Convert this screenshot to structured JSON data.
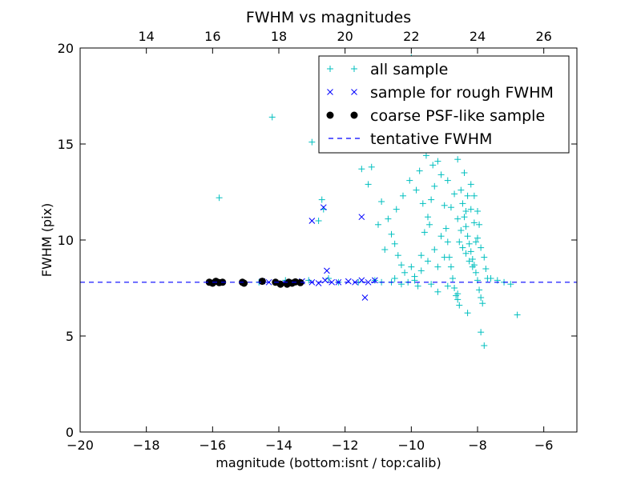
{
  "chart_data": {
    "type": "scatter",
    "title": "FWHM vs magnitudes",
    "xlabel": "magnitude (bottom:isnt / top:calib)",
    "ylabel": "FWHM (pix)",
    "xlim": [
      -20,
      -5
    ],
    "ylim": [
      0,
      20
    ],
    "x_ticks": [
      "−20",
      "−18",
      "−16",
      "−14",
      "−12",
      "−10",
      "−8",
      "−6"
    ],
    "x_tick_values": [
      -20,
      -18,
      -16,
      -14,
      -12,
      -10,
      -8,
      -6
    ],
    "y_ticks": [
      "0",
      "5",
      "10",
      "15",
      "20"
    ],
    "y_tick_values": [
      0,
      5,
      10,
      15,
      20
    ],
    "top_axis": {
      "ticks": [
        "14",
        "16",
        "18",
        "20",
        "22",
        "24",
        "26"
      ],
      "tick_values": [
        14,
        16,
        18,
        20,
        22,
        24,
        26
      ],
      "offset": 32
    },
    "grid": false,
    "legend_position": "top-right",
    "series": [
      {
        "name": "all sample",
        "marker": "plus",
        "color": "#00bfbf",
        "points": [
          [
            -15.8,
            12.2
          ],
          [
            -14.2,
            16.4
          ],
          [
            -13.0,
            15.1
          ],
          [
            -12.7,
            12.1
          ],
          [
            -12.65,
            11.6
          ],
          [
            -11.5,
            13.7
          ],
          [
            -11.2,
            13.8
          ],
          [
            -11.3,
            12.9
          ],
          [
            -10.9,
            12.0
          ],
          [
            -10.7,
            11.1
          ],
          [
            -10.6,
            10.3
          ],
          [
            -10.5,
            9.8
          ],
          [
            -10.4,
            9.2
          ],
          [
            -10.3,
            8.7
          ],
          [
            -10.2,
            8.3
          ],
          [
            -10.5,
            8.0
          ],
          [
            -10.0,
            8.6
          ],
          [
            -9.9,
            8.1
          ],
          [
            -9.8,
            7.6
          ],
          [
            -9.7,
            9.2
          ],
          [
            -9.6,
            10.4
          ],
          [
            -9.5,
            11.2
          ],
          [
            -9.4,
            12.1
          ],
          [
            -9.3,
            12.8
          ],
          [
            -9.2,
            14.1
          ],
          [
            -9.1,
            13.4
          ],
          [
            -9.0,
            11.8
          ],
          [
            -8.95,
            10.6
          ],
          [
            -8.9,
            9.9
          ],
          [
            -8.85,
            9.1
          ],
          [
            -8.8,
            8.6
          ],
          [
            -8.75,
            8.0
          ],
          [
            -8.7,
            7.5
          ],
          [
            -8.65,
            7.1
          ],
          [
            -8.6,
            6.9
          ],
          [
            -8.55,
            6.6
          ],
          [
            -8.5,
            12.6
          ],
          [
            -8.45,
            11.9
          ],
          [
            -8.4,
            11.2
          ],
          [
            -8.35,
            10.7
          ],
          [
            -8.3,
            10.2
          ],
          [
            -8.25,
            9.8
          ],
          [
            -8.2,
            9.4
          ],
          [
            -8.15,
            9.0
          ],
          [
            -8.1,
            8.7
          ],
          [
            -8.05,
            8.3
          ],
          [
            -8.0,
            7.9
          ],
          [
            -7.95,
            7.4
          ],
          [
            -7.9,
            7.0
          ],
          [
            -7.85,
            6.7
          ],
          [
            -8.4,
            13.5
          ],
          [
            -8.6,
            14.2
          ],
          [
            -8.3,
            12.3
          ],
          [
            -8.2,
            11.6
          ],
          [
            -8.1,
            10.9
          ],
          [
            -8.0,
            10.1
          ],
          [
            -7.9,
            9.6
          ],
          [
            -7.8,
            9.1
          ],
          [
            -7.75,
            8.5
          ],
          [
            -7.7,
            8.0
          ],
          [
            -8.45,
            9.6
          ],
          [
            -8.35,
            9.3
          ],
          [
            -8.25,
            8.9
          ],
          [
            -8.15,
            8.6
          ],
          [
            -8.05,
            9.9
          ],
          [
            -8.5,
            10.5
          ],
          [
            -8.6,
            11.1
          ],
          [
            -8.7,
            12.4
          ],
          [
            -8.8,
            11.7
          ],
          [
            -8.9,
            13.1
          ],
          [
            -9.1,
            10.2
          ],
          [
            -9.3,
            9.5
          ],
          [
            -9.5,
            8.9
          ],
          [
            -9.7,
            8.4
          ],
          [
            -9.9,
            7.9
          ],
          [
            -10.1,
            7.8
          ],
          [
            -10.3,
            7.7
          ],
          [
            -10.6,
            7.8
          ],
          [
            -10.9,
            7.8
          ],
          [
            -11.1,
            7.9
          ],
          [
            -11.6,
            7.8
          ],
          [
            -12.2,
            7.8
          ],
          [
            -7.6,
            8.0
          ],
          [
            -7.4,
            7.9
          ],
          [
            -7.2,
            7.8
          ],
          [
            -7.0,
            7.7
          ],
          [
            -6.8,
            6.1
          ],
          [
            -7.9,
            5.2
          ],
          [
            -7.8,
            4.5
          ],
          [
            -8.3,
            6.2
          ],
          [
            -8.6,
            7.2
          ],
          [
            -8.9,
            7.6
          ],
          [
            -9.2,
            7.3
          ],
          [
            -9.4,
            7.7
          ],
          [
            -8.2,
            12.9
          ],
          [
            -8.1,
            12.3
          ],
          [
            -8.0,
            11.5
          ],
          [
            -7.95,
            10.8
          ],
          [
            -8.35,
            11.5
          ],
          [
            -8.55,
            9.9
          ],
          [
            -9.0,
            9.1
          ],
          [
            -9.2,
            8.6
          ],
          [
            -9.45,
            10.8
          ],
          [
            -9.65,
            11.9
          ],
          [
            -9.85,
            12.6
          ],
          [
            -10.05,
            13.1
          ],
          [
            -10.25,
            12.3
          ],
          [
            -10.45,
            11.6
          ],
          [
            -10.8,
            9.5
          ],
          [
            -11.0,
            10.8
          ],
          [
            -12.8,
            11.0
          ],
          [
            -12.5,
            8.0
          ],
          [
            -13.1,
            7.9
          ],
          [
            -14.6,
            7.8
          ],
          [
            -13.8,
            7.9
          ],
          [
            -10.0,
            19.5
          ],
          [
            -10.2,
            14.7
          ],
          [
            -9.75,
            13.6
          ],
          [
            -9.55,
            14.4
          ],
          [
            -9.35,
            13.9
          ]
        ]
      },
      {
        "name": "sample for rough FWHM",
        "marker": "x",
        "color": "#0000ff",
        "points": [
          [
            -13.0,
            11.0
          ],
          [
            -12.65,
            11.7
          ],
          [
            -11.5,
            11.2
          ],
          [
            -12.55,
            8.4
          ],
          [
            -11.4,
            7.0
          ],
          [
            -13.3,
            7.85
          ],
          [
            -13.0,
            7.8
          ],
          [
            -12.8,
            7.75
          ],
          [
            -12.6,
            7.9
          ],
          [
            -12.4,
            7.8
          ],
          [
            -12.2,
            7.8
          ],
          [
            -11.9,
            7.85
          ],
          [
            -11.7,
            7.8
          ],
          [
            -11.5,
            7.9
          ],
          [
            -11.3,
            7.8
          ],
          [
            -11.1,
            7.9
          ],
          [
            -13.6,
            7.8
          ],
          [
            -13.9,
            7.75
          ],
          [
            -14.3,
            7.8
          ],
          [
            -14.5,
            7.85
          ]
        ]
      },
      {
        "name": "coarse PSF-like sample",
        "marker": "dot",
        "color": "#000000",
        "points": [
          [
            -16.1,
            7.8
          ],
          [
            -16.0,
            7.75
          ],
          [
            -15.9,
            7.85
          ],
          [
            -15.8,
            7.78
          ],
          [
            -15.7,
            7.8
          ],
          [
            -15.1,
            7.8
          ],
          [
            -14.5,
            7.85
          ],
          [
            -14.1,
            7.8
          ],
          [
            -13.95,
            7.7
          ],
          [
            -13.7,
            7.8
          ],
          [
            -13.6,
            7.75
          ],
          [
            -13.5,
            7.82
          ],
          [
            -13.35,
            7.78
          ],
          [
            -15.05,
            7.75
          ],
          [
            -13.75,
            7.7
          ]
        ]
      },
      {
        "name": "tentative FWHM",
        "marker": "dashed-line",
        "color": "#0000ff",
        "y": 7.8
      }
    ]
  }
}
